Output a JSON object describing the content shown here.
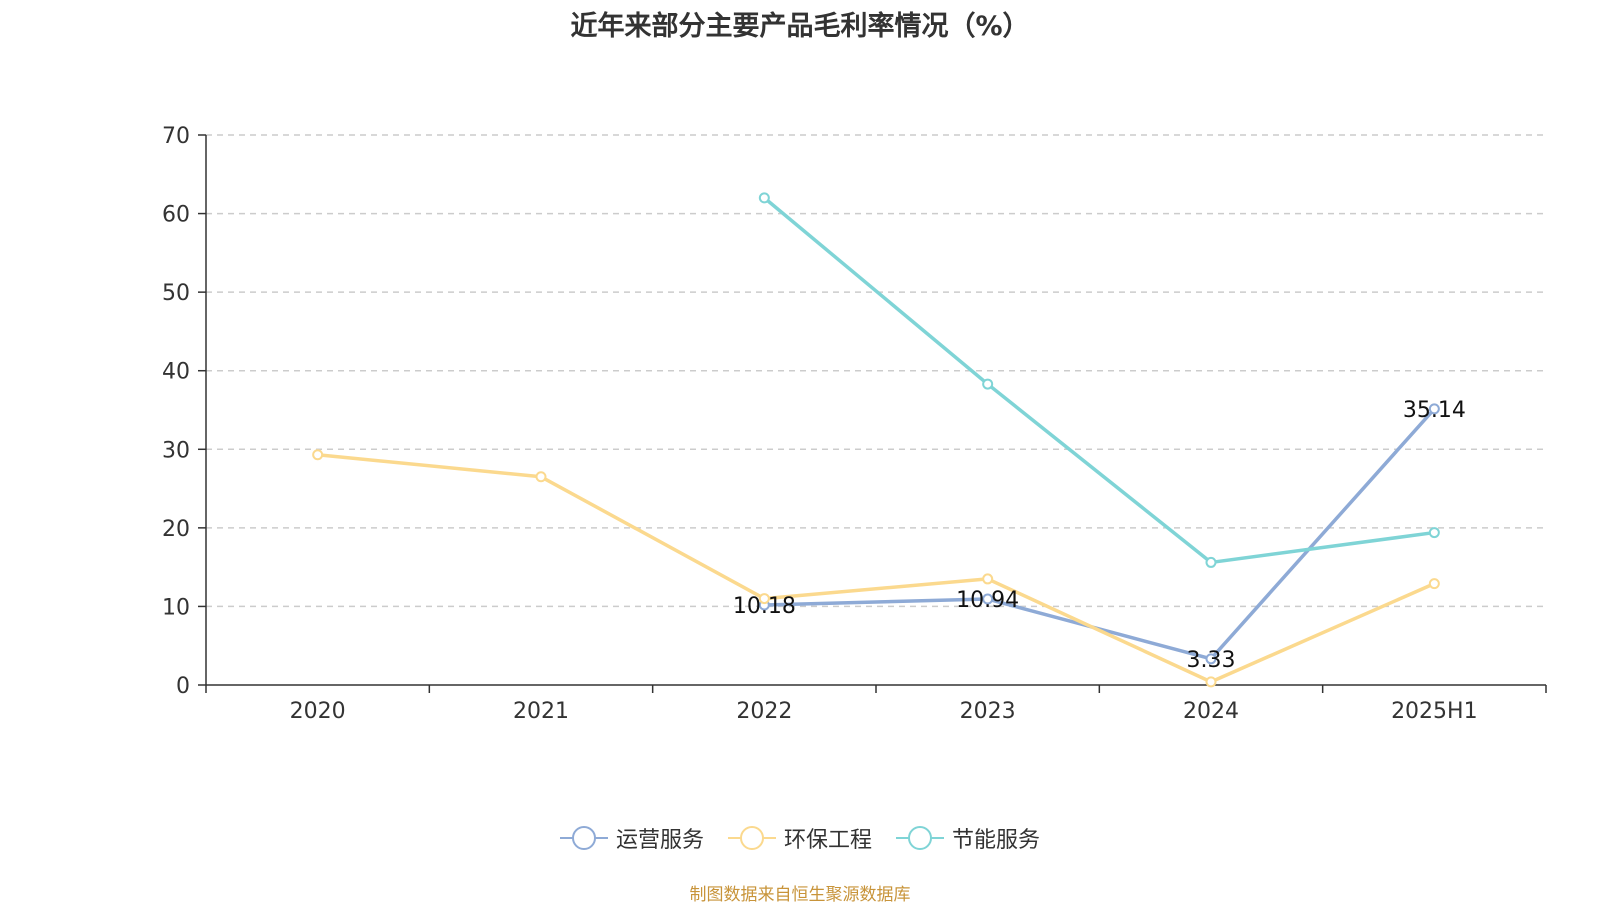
{
  "title": "近年来部分主要产品毛利率情况（%）",
  "source_note": "制图数据来自恒生聚源数据库",
  "chart_data": {
    "type": "line",
    "title": "近年来部分主要产品毛利率情况（%）",
    "categories": [
      "2020",
      "2021",
      "2022",
      "2023",
      "2024",
      "2025H1"
    ],
    "ylim": [
      0,
      70
    ],
    "yticks": [
      0,
      10,
      20,
      30,
      40,
      50,
      60,
      70
    ],
    "grid": true,
    "legend_position": "bottom",
    "series": [
      {
        "name": "运营服务",
        "color": "#8eaad6",
        "values": [
          null,
          null,
          10.18,
          10.94,
          3.33,
          35.14
        ],
        "show_labels": true
      },
      {
        "name": "环保工程",
        "color": "#fbd98e",
        "values": [
          29.3,
          26.5,
          11.0,
          13.5,
          0.4,
          12.9
        ],
        "show_labels": false
      },
      {
        "name": "节能服务",
        "color": "#7fd4d6",
        "values": [
          null,
          null,
          62.0,
          38.3,
          15.6,
          19.4
        ],
        "show_labels": false
      }
    ]
  }
}
